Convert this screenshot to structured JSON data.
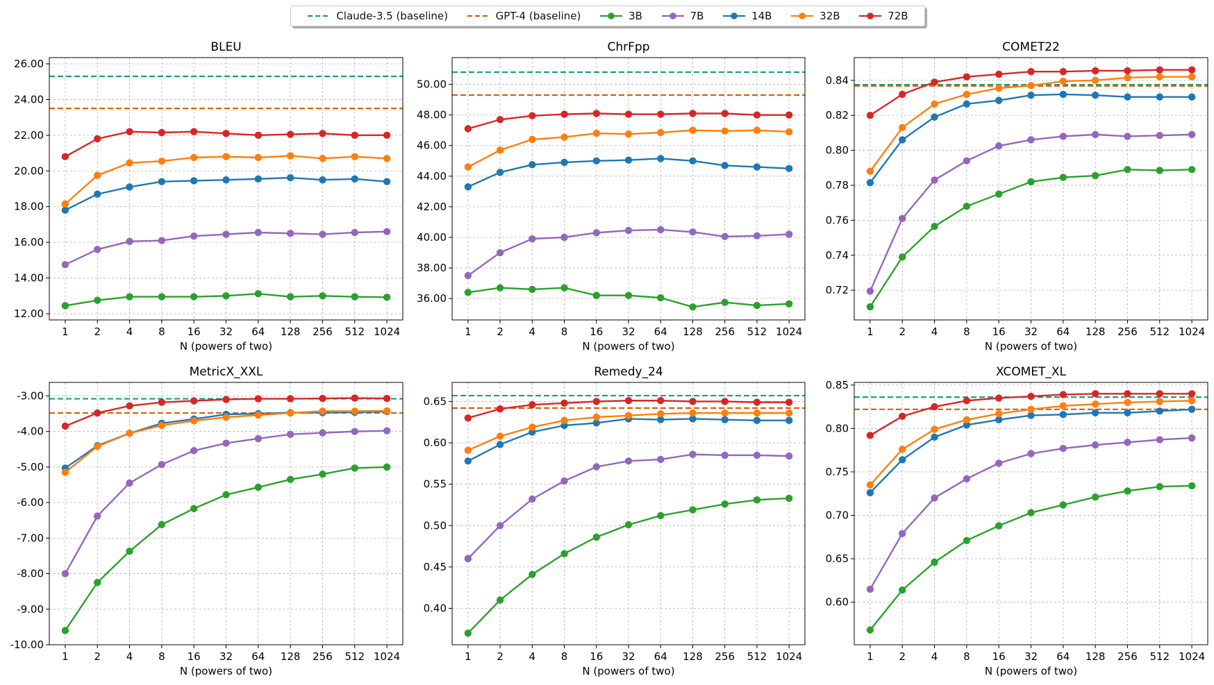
{
  "legend": {
    "entries": [
      {
        "label": "Claude-3.5 (baseline)",
        "kind": "dashed",
        "color": "#1a9e77"
      },
      {
        "label": "GPT-4 (baseline)",
        "kind": "dashed",
        "color": "#d95f02"
      },
      {
        "label": "3B",
        "kind": "marker",
        "color": "#2ca02c"
      },
      {
        "label": "7B",
        "kind": "marker",
        "color": "#9467bd"
      },
      {
        "label": "14B",
        "kind": "marker",
        "color": "#1f77b4"
      },
      {
        "label": "32B",
        "kind": "marker",
        "color": "#ff7f0e"
      },
      {
        "label": "72B",
        "kind": "marker",
        "color": "#d62728"
      }
    ]
  },
  "chart_data": [
    {
      "type": "line",
      "title": "BLEU",
      "xlabel": "N (powers of two)",
      "ylabel": "",
      "categories": [
        "1",
        "2",
        "4",
        "8",
        "16",
        "32",
        "64",
        "128",
        "256",
        "512",
        "1024"
      ],
      "ylim": [
        11.65,
        26.35
      ],
      "yticks": [
        12,
        14,
        16,
        18,
        20,
        22,
        24,
        26
      ],
      "ytick_decimals": 2,
      "baselines": [
        {
          "name": "Claude-3.5 (baseline)",
          "value": 25.3
        },
        {
          "name": "GPT-4 (baseline)",
          "value": 23.5
        }
      ],
      "series": [
        {
          "name": "3B",
          "values": [
            12.45,
            12.75,
            12.95,
            12.95,
            12.95,
            13.0,
            13.12,
            12.95,
            13.0,
            12.95,
            12.92
          ]
        },
        {
          "name": "7B",
          "values": [
            14.75,
            15.6,
            16.05,
            16.1,
            16.35,
            16.45,
            16.55,
            16.5,
            16.45,
            16.55,
            16.6
          ]
        },
        {
          "name": "14B",
          "values": [
            17.8,
            18.7,
            19.1,
            19.4,
            19.45,
            19.5,
            19.55,
            19.62,
            19.5,
            19.55,
            19.4
          ]
        },
        {
          "name": "32B",
          "values": [
            18.15,
            19.75,
            20.45,
            20.55,
            20.75,
            20.8,
            20.75,
            20.85,
            20.7,
            20.8,
            20.7
          ]
        },
        {
          "name": "72B",
          "values": [
            20.8,
            21.8,
            22.2,
            22.15,
            22.2,
            22.1,
            22.0,
            22.05,
            22.1,
            22.0,
            22.0
          ]
        }
      ]
    },
    {
      "type": "line",
      "title": "ChrFpp",
      "xlabel": "N (powers of two)",
      "ylabel": "",
      "categories": [
        "1",
        "2",
        "4",
        "8",
        "16",
        "32",
        "64",
        "128",
        "256",
        "512",
        "1024"
      ],
      "ylim": [
        34.6,
        51.75
      ],
      "yticks": [
        36,
        38,
        40,
        42,
        44,
        46,
        48,
        50
      ],
      "ytick_decimals": 2,
      "baselines": [
        {
          "name": "Claude-3.5 (baseline)",
          "value": 50.8
        },
        {
          "name": "GPT-4 (baseline)",
          "value": 49.3
        }
      ],
      "series": [
        {
          "name": "3B",
          "values": [
            36.4,
            36.7,
            36.6,
            36.7,
            36.2,
            36.2,
            36.05,
            35.45,
            35.75,
            35.55,
            35.65
          ]
        },
        {
          "name": "7B",
          "values": [
            37.5,
            39.0,
            39.9,
            40.0,
            40.3,
            40.45,
            40.5,
            40.35,
            40.05,
            40.1,
            40.2
          ]
        },
        {
          "name": "14B",
          "values": [
            43.3,
            44.25,
            44.75,
            44.9,
            45.0,
            45.05,
            45.15,
            45.0,
            44.7,
            44.6,
            44.5
          ]
        },
        {
          "name": "32B",
          "values": [
            44.6,
            45.7,
            46.4,
            46.55,
            46.8,
            46.75,
            46.85,
            47.0,
            46.95,
            47.0,
            46.9
          ]
        },
        {
          "name": "72B",
          "values": [
            47.1,
            47.7,
            47.95,
            48.05,
            48.1,
            48.05,
            48.05,
            48.1,
            48.1,
            48.0,
            48.0
          ]
        }
      ]
    },
    {
      "type": "line",
      "title": "COMET22",
      "xlabel": "N (powers of two)",
      "ylabel": "",
      "categories": [
        "1",
        "2",
        "4",
        "8",
        "16",
        "32",
        "64",
        "128",
        "256",
        "512",
        "1024"
      ],
      "ylim": [
        0.703,
        0.853
      ],
      "yticks": [
        0.72,
        0.74,
        0.76,
        0.78,
        0.8,
        0.82,
        0.84
      ],
      "ytick_decimals": 2,
      "baselines": [
        {
          "name": "Claude-3.5 (baseline)",
          "value": 0.8375
        },
        {
          "name": "GPT-4 (baseline)",
          "value": 0.8368
        }
      ],
      "series": [
        {
          "name": "3B",
          "values": [
            0.7105,
            0.739,
            0.7565,
            0.768,
            0.775,
            0.782,
            0.7845,
            0.7855,
            0.789,
            0.7885,
            0.789
          ]
        },
        {
          "name": "7B",
          "values": [
            0.7195,
            0.761,
            0.783,
            0.794,
            0.8025,
            0.806,
            0.808,
            0.809,
            0.808,
            0.8085,
            0.809
          ]
        },
        {
          "name": "14B",
          "values": [
            0.7815,
            0.806,
            0.819,
            0.8265,
            0.8285,
            0.8315,
            0.832,
            0.8315,
            0.8305,
            0.8305,
            0.8305
          ]
        },
        {
          "name": "32B",
          "values": [
            0.788,
            0.813,
            0.8265,
            0.832,
            0.8355,
            0.837,
            0.8395,
            0.84,
            0.8415,
            0.842,
            0.842
          ]
        },
        {
          "name": "72B",
          "values": [
            0.82,
            0.832,
            0.839,
            0.842,
            0.8435,
            0.845,
            0.845,
            0.8455,
            0.8455,
            0.846,
            0.846
          ]
        }
      ]
    },
    {
      "type": "line",
      "title": "MetricX_XXL",
      "xlabel": "N (powers of two)",
      "ylabel": "",
      "categories": [
        "1",
        "2",
        "4",
        "8",
        "16",
        "32",
        "64",
        "128",
        "256",
        "512",
        "1024"
      ],
      "ylim": [
        -10.0,
        -2.62
      ],
      "yticks": [
        -10,
        -9,
        -8,
        -7,
        -6,
        -5,
        -4,
        -3
      ],
      "ytick_decimals": 2,
      "baselines": [
        {
          "name": "Claude-3.5 (baseline)",
          "value": -3.08
        },
        {
          "name": "GPT-4 (baseline)",
          "value": -3.48
        }
      ],
      "series": [
        {
          "name": "3B",
          "values": [
            -9.6,
            -8.25,
            -7.37,
            -6.62,
            -6.17,
            -5.78,
            -5.57,
            -5.35,
            -5.2,
            -5.03,
            -5.0
          ]
        },
        {
          "name": "7B",
          "values": [
            -8.0,
            -6.38,
            -5.45,
            -4.93,
            -4.54,
            -4.33,
            -4.2,
            -4.08,
            -4.04,
            -4.0,
            -3.98
          ]
        },
        {
          "name": "14B",
          "values": [
            -5.03,
            -4.4,
            -4.05,
            -3.77,
            -3.65,
            -3.52,
            -3.5,
            -3.47,
            -3.47,
            -3.46,
            -3.44
          ]
        },
        {
          "name": "32B",
          "values": [
            -5.15,
            -4.42,
            -4.05,
            -3.83,
            -3.7,
            -3.6,
            -3.54,
            -3.48,
            -3.43,
            -3.43,
            -3.42
          ]
        },
        {
          "name": "72B",
          "values": [
            -3.85,
            -3.48,
            -3.28,
            -3.18,
            -3.14,
            -3.1,
            -3.08,
            -3.08,
            -3.07,
            -3.06,
            -3.07
          ]
        }
      ]
    },
    {
      "type": "line",
      "title": "Remedy_24",
      "xlabel": "N (powers of two)",
      "ylabel": "",
      "categories": [
        "1",
        "2",
        "4",
        "8",
        "16",
        "32",
        "64",
        "128",
        "256",
        "512",
        "1024"
      ],
      "ylim": [
        0.356,
        0.673
      ],
      "yticks": [
        0.4,
        0.45,
        0.5,
        0.55,
        0.6,
        0.65
      ],
      "ytick_decimals": 2,
      "baselines": [
        {
          "name": "Claude-3.5 (baseline)",
          "value": 0.657
        },
        {
          "name": "GPT-4 (baseline)",
          "value": 0.642
        }
      ],
      "series": [
        {
          "name": "3B",
          "values": [
            0.37,
            0.41,
            0.441,
            0.466,
            0.486,
            0.501,
            0.512,
            0.519,
            0.526,
            0.531,
            0.533
          ]
        },
        {
          "name": "7B",
          "values": [
            0.46,
            0.5,
            0.532,
            0.554,
            0.571,
            0.578,
            0.58,
            0.586,
            0.585,
            0.585,
            0.584
          ]
        },
        {
          "name": "14B",
          "values": [
            0.578,
            0.598,
            0.613,
            0.621,
            0.624,
            0.629,
            0.628,
            0.629,
            0.628,
            0.627,
            0.627
          ]
        },
        {
          "name": "32B",
          "values": [
            0.591,
            0.608,
            0.619,
            0.627,
            0.631,
            0.633,
            0.635,
            0.636,
            0.636,
            0.636,
            0.636
          ]
        },
        {
          "name": "72B",
          "values": [
            0.63,
            0.641,
            0.646,
            0.648,
            0.65,
            0.651,
            0.651,
            0.65,
            0.65,
            0.649,
            0.649
          ]
        }
      ]
    },
    {
      "type": "line",
      "title": "XCOMET_XL",
      "xlabel": "N (powers of two)",
      "ylabel": "",
      "categories": [
        "1",
        "2",
        "4",
        "8",
        "16",
        "32",
        "64",
        "128",
        "256",
        "512",
        "1024"
      ],
      "ylim": [
        0.551,
        0.853
      ],
      "yticks": [
        0.6,
        0.65,
        0.7,
        0.75,
        0.8,
        0.85
      ],
      "ytick_decimals": 2,
      "baselines": [
        {
          "name": "Claude-3.5 (baseline)",
          "value": 0.836
        },
        {
          "name": "GPT-4 (baseline)",
          "value": 0.822
        }
      ],
      "series": [
        {
          "name": "3B",
          "values": [
            0.568,
            0.614,
            0.646,
            0.671,
            0.688,
            0.703,
            0.712,
            0.721,
            0.728,
            0.733,
            0.734
          ]
        },
        {
          "name": "7B",
          "values": [
            0.615,
            0.679,
            0.72,
            0.742,
            0.76,
            0.771,
            0.777,
            0.781,
            0.784,
            0.787,
            0.789
          ]
        },
        {
          "name": "14B",
          "values": [
            0.726,
            0.764,
            0.79,
            0.804,
            0.81,
            0.815,
            0.816,
            0.818,
            0.818,
            0.82,
            0.822
          ]
        },
        {
          "name": "32B",
          "values": [
            0.735,
            0.776,
            0.799,
            0.81,
            0.817,
            0.822,
            0.826,
            0.828,
            0.83,
            0.831,
            0.832
          ]
        },
        {
          "name": "72B",
          "values": [
            0.792,
            0.814,
            0.825,
            0.832,
            0.835,
            0.837,
            0.839,
            0.84,
            0.84,
            0.84,
            0.84
          ]
        }
      ]
    }
  ]
}
